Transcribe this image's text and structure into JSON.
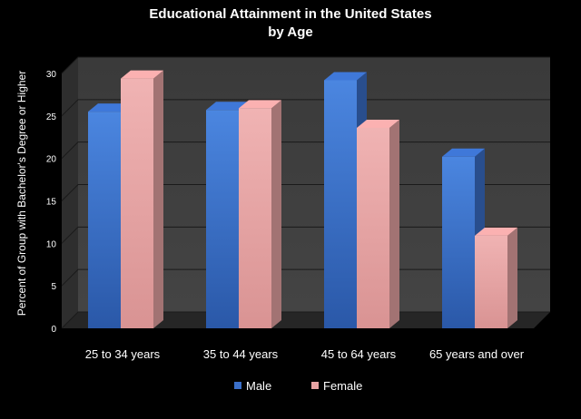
{
  "chart_data": {
    "type": "bar",
    "title_line1": "Educational Attainment in the United States",
    "title_line2": "by Age",
    "ylabel": "Percent of Group with Bachelor's Degree or Higher",
    "xlabel": "",
    "ylim": [
      0,
      30
    ],
    "yticks": [
      0,
      5,
      10,
      15,
      20,
      25,
      30
    ],
    "categories": [
      "25 to 34 years",
      "35 to 44 years",
      "45 to 64 years",
      "65 years and over"
    ],
    "series": [
      {
        "name": "Male",
        "values": [
          25.5,
          25.7,
          29.2,
          20.2
        ],
        "color": "#3a6fc9"
      },
      {
        "name": "Female",
        "values": [
          29.4,
          25.9,
          23.6,
          10.9
        ],
        "color": "#e8a4a4"
      }
    ],
    "grid": true,
    "legend": "bottom",
    "background": "#000000",
    "wall_color": "#3c3c3c"
  }
}
